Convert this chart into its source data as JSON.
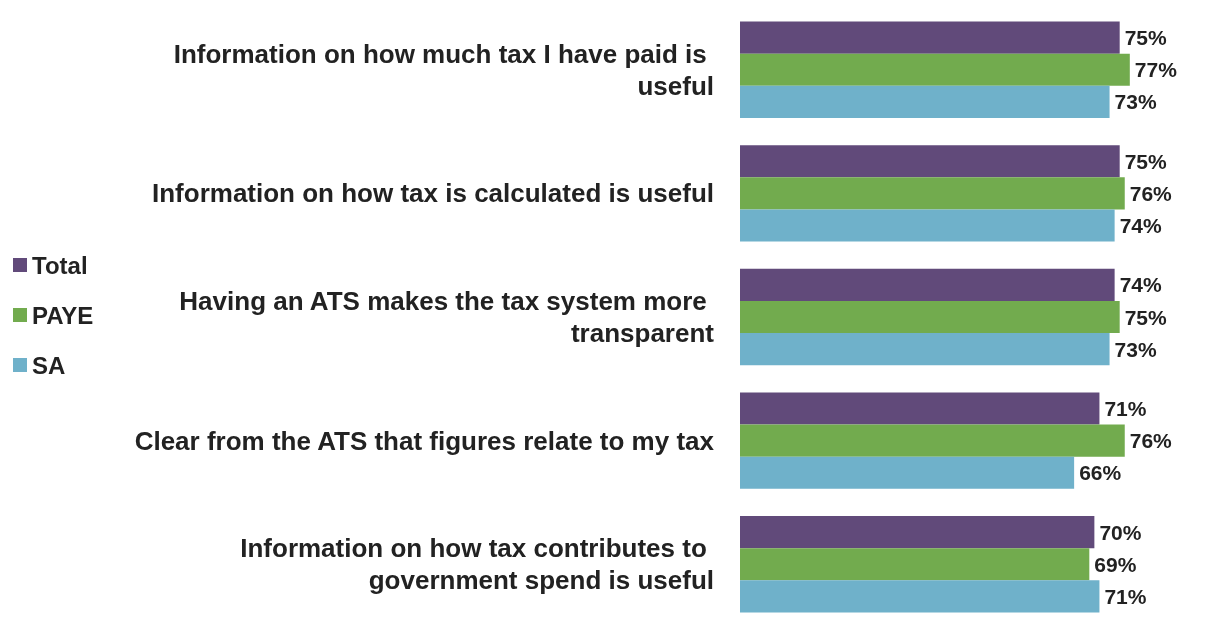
{
  "chart_data": {
    "type": "bar",
    "orientation": "horizontal",
    "categories": [
      "Information on how much tax I have paid is useful",
      "Information on how tax is calculated is useful",
      "Having an ATS makes the tax system more transparent",
      "Clear from the ATS that figures relate to my tax",
      "Information on how tax contributes to government spend is useful"
    ],
    "series": [
      {
        "name": "Total",
        "color": "#614a7a",
        "values": [
          75,
          75,
          74,
          71,
          70
        ],
        "value_labels": [
          "75%",
          "75%",
          "74%",
          "71%",
          "70%"
        ]
      },
      {
        "name": "PAYE",
        "color": "#72ab4e",
        "values": [
          77,
          76,
          75,
          76,
          69
        ],
        "value_labels": [
          "77%",
          "76%",
          "75%",
          "76%",
          "69%"
        ]
      },
      {
        "name": "SA",
        "color": "#6fb1ca",
        "values": [
          73,
          74,
          73,
          66,
          71
        ],
        "value_labels": [
          "73%",
          "74%",
          "73%",
          "66%",
          "71%"
        ]
      }
    ],
    "legend": "left",
    "grid": false
  }
}
